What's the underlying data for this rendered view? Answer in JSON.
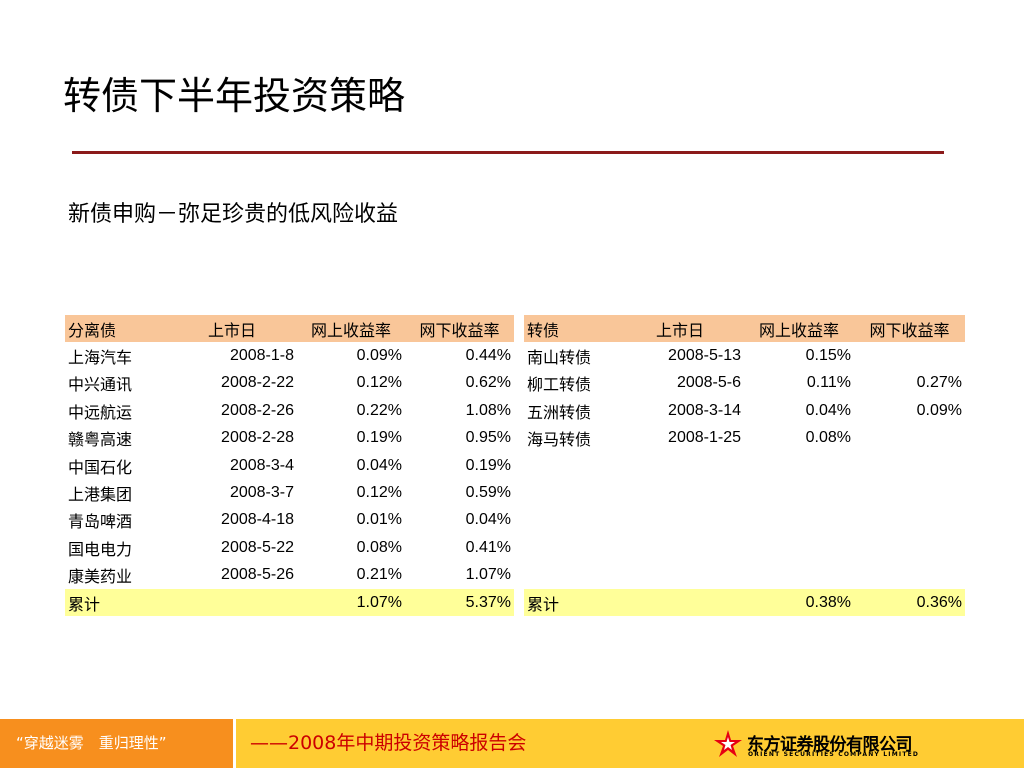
{
  "title": "转债下半年投资策略",
  "subtitle": "新债申购－弥足珍贵的低风险收益",
  "left_table": {
    "headers": [
      "分离债",
      "上市日",
      "网上收益率",
      "网下收益率"
    ],
    "rows": [
      [
        "上海汽车",
        "2008-1-8",
        "0.09%",
        "0.44%"
      ],
      [
        "中兴通讯",
        "2008-2-22",
        "0.12%",
        "0.62%"
      ],
      [
        "中远航运",
        "2008-2-26",
        "0.22%",
        "1.08%"
      ],
      [
        "赣粤高速",
        "2008-2-28",
        "0.19%",
        "0.95%"
      ],
      [
        "中国石化",
        "2008-3-4",
        "0.04%",
        "0.19%"
      ],
      [
        "上港集团",
        "2008-3-7",
        "0.12%",
        "0.59%"
      ],
      [
        "青岛啤酒",
        "2008-4-18",
        "0.01%",
        "0.04%"
      ],
      [
        "国电电力",
        "2008-5-22",
        "0.08%",
        "0.41%"
      ],
      [
        "康美药业",
        "2008-5-26",
        "0.21%",
        "1.07%"
      ]
    ],
    "total": [
      "累计",
      "",
      "1.07%",
      "5.37%"
    ]
  },
  "right_table": {
    "headers": [
      "转债",
      "上市日",
      "网上收益率",
      "网下收益率"
    ],
    "rows": [
      [
        "南山转债",
        "2008-5-13",
        "0.15%",
        ""
      ],
      [
        "柳工转债",
        "2008-5-6",
        "0.11%",
        "0.27%"
      ],
      [
        "五洲转债",
        "2008-3-14",
        "0.04%",
        "0.09%"
      ],
      [
        "海马转债",
        "2008-1-25",
        "0.08%",
        ""
      ],
      [
        "",
        "",
        "",
        ""
      ],
      [
        "",
        "",
        "",
        ""
      ],
      [
        "",
        "",
        "",
        ""
      ],
      [
        "",
        "",
        "",
        ""
      ],
      [
        "",
        "",
        "",
        ""
      ]
    ],
    "total": [
      "累计",
      "",
      "0.38%",
      "0.36%"
    ]
  },
  "footer": {
    "slogan": "“穿越迷雾　重归理性”",
    "report": "——2008年中期投资策略报告会",
    "company_cn": "东方证券股份有限公司",
    "company_en": "ORIENT SECURITIES COMPANY LIMITED"
  },
  "colors": {
    "title_rule": "#8b1a1a",
    "table_header": "#f9c699",
    "table_total": "#ffff99",
    "footer_left": "#f78f1e",
    "footer_bar": "#ffcc33",
    "footer_text": "#cc0000",
    "logo_red": "#e60012"
  }
}
